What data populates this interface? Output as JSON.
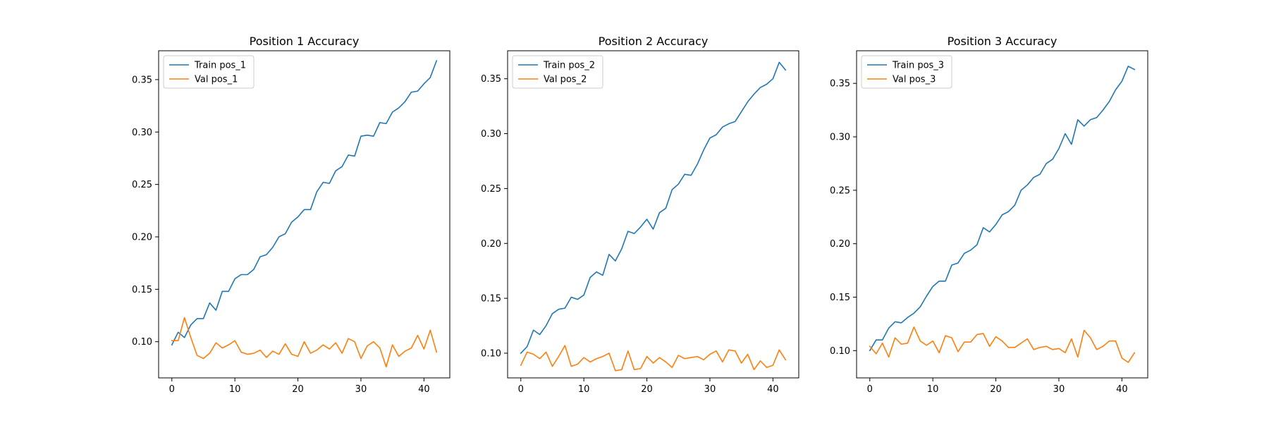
{
  "chart_data": [
    {
      "type": "line",
      "title": "Position 1 Accuracy",
      "xlabel": "",
      "ylabel": "",
      "xlim": [
        -2.1,
        44.1
      ],
      "ylim": [
        0.0655,
        0.3775
      ],
      "xticks": [
        0,
        10,
        20,
        30,
        40
      ],
      "yticks": [
        0.1,
        0.15,
        0.2,
        0.25,
        0.3,
        0.35
      ],
      "grid": false,
      "legend_position": "upper-left",
      "series": [
        {
          "name": "Train pos_1",
          "color": "#1f77b4",
          "x": [
            0,
            1,
            2,
            3,
            4,
            5,
            6,
            7,
            8,
            9,
            10,
            11,
            12,
            13,
            14,
            15,
            16,
            17,
            18,
            19,
            20,
            21,
            22,
            23,
            24,
            25,
            26,
            27,
            28,
            29,
            30,
            31,
            32,
            33,
            34,
            35,
            36,
            37,
            38,
            39,
            40,
            41,
            42
          ],
          "y": [
            0.097,
            0.109,
            0.104,
            0.116,
            0.122,
            0.122,
            0.137,
            0.13,
            0.148,
            0.148,
            0.16,
            0.164,
            0.164,
            0.169,
            0.181,
            0.183,
            0.19,
            0.2,
            0.203,
            0.214,
            0.219,
            0.226,
            0.226,
            0.243,
            0.252,
            0.251,
            0.263,
            0.267,
            0.278,
            0.277,
            0.296,
            0.297,
            0.296,
            0.309,
            0.308,
            0.319,
            0.323,
            0.329,
            0.338,
            0.339,
            0.346,
            0.352,
            0.368
          ]
        },
        {
          "name": "Val pos_1",
          "color": "#ff7f0e",
          "x": [
            0,
            1,
            2,
            3,
            4,
            5,
            6,
            7,
            8,
            9,
            10,
            11,
            12,
            13,
            14,
            15,
            16,
            17,
            18,
            19,
            20,
            21,
            22,
            23,
            24,
            25,
            26,
            27,
            28,
            29,
            30,
            31,
            32,
            33,
            34,
            35,
            36,
            37,
            38,
            39,
            40,
            41,
            42
          ],
          "y": [
            0.101,
            0.101,
            0.123,
            0.104,
            0.087,
            0.084,
            0.089,
            0.099,
            0.094,
            0.097,
            0.101,
            0.09,
            0.088,
            0.089,
            0.092,
            0.085,
            0.091,
            0.088,
            0.098,
            0.088,
            0.086,
            0.1,
            0.089,
            0.092,
            0.097,
            0.093,
            0.099,
            0.089,
            0.103,
            0.1,
            0.084,
            0.096,
            0.1,
            0.094,
            0.076,
            0.097,
            0.086,
            0.091,
            0.094,
            0.106,
            0.093,
            0.111,
            0.09
          ]
        }
      ]
    },
    {
      "type": "line",
      "title": "Position 2 Accuracy",
      "xlabel": "",
      "ylabel": "",
      "xlim": [
        -2.1,
        44.1
      ],
      "ylim": [
        0.0775,
        0.3755
      ],
      "xticks": [
        0,
        10,
        20,
        30,
        40
      ],
      "yticks": [
        0.1,
        0.15,
        0.2,
        0.25,
        0.3,
        0.35
      ],
      "grid": false,
      "legend_position": "upper-left",
      "series": [
        {
          "name": "Train pos_2",
          "color": "#1f77b4",
          "x": [
            0,
            1,
            2,
            3,
            4,
            5,
            6,
            7,
            8,
            9,
            10,
            11,
            12,
            13,
            14,
            15,
            16,
            17,
            18,
            19,
            20,
            21,
            22,
            23,
            24,
            25,
            26,
            27,
            28,
            29,
            30,
            31,
            32,
            33,
            34,
            35,
            36,
            37,
            38,
            39,
            40,
            41,
            42
          ],
          "y": [
            0.1,
            0.106,
            0.121,
            0.117,
            0.125,
            0.136,
            0.14,
            0.141,
            0.151,
            0.149,
            0.153,
            0.169,
            0.174,
            0.171,
            0.19,
            0.184,
            0.195,
            0.211,
            0.209,
            0.215,
            0.222,
            0.213,
            0.228,
            0.232,
            0.249,
            0.254,
            0.263,
            0.262,
            0.272,
            0.285,
            0.296,
            0.299,
            0.306,
            0.309,
            0.311,
            0.32,
            0.329,
            0.336,
            0.342,
            0.345,
            0.35,
            0.365,
            0.358
          ]
        },
        {
          "name": "Val pos_2",
          "color": "#ff7f0e",
          "x": [
            0,
            1,
            2,
            3,
            4,
            5,
            6,
            7,
            8,
            9,
            10,
            11,
            12,
            13,
            14,
            15,
            16,
            17,
            18,
            19,
            20,
            21,
            22,
            23,
            24,
            25,
            26,
            27,
            28,
            29,
            30,
            31,
            32,
            33,
            34,
            35,
            36,
            37,
            38,
            39,
            40,
            41,
            42
          ],
          "y": [
            0.089,
            0.101,
            0.099,
            0.095,
            0.101,
            0.088,
            0.097,
            0.107,
            0.088,
            0.09,
            0.096,
            0.092,
            0.095,
            0.097,
            0.1,
            0.084,
            0.085,
            0.102,
            0.085,
            0.086,
            0.097,
            0.091,
            0.096,
            0.092,
            0.087,
            0.098,
            0.095,
            0.096,
            0.097,
            0.094,
            0.099,
            0.102,
            0.092,
            0.103,
            0.102,
            0.091,
            0.099,
            0.085,
            0.093,
            0.087,
            0.089,
            0.103,
            0.094
          ]
        }
      ]
    },
    {
      "type": "line",
      "title": "Position 3 Accuracy",
      "xlabel": "",
      "ylabel": "",
      "xlim": [
        -2.1,
        44.1
      ],
      "ylim": [
        0.0745,
        0.3805
      ],
      "xticks": [
        0,
        10,
        20,
        30,
        40
      ],
      "yticks": [
        0.1,
        0.15,
        0.2,
        0.25,
        0.3,
        0.35
      ],
      "grid": false,
      "legend_position": "upper-left",
      "series": [
        {
          "name": "Train pos_3",
          "color": "#1f77b4",
          "x": [
            0,
            1,
            2,
            3,
            4,
            5,
            6,
            7,
            8,
            9,
            10,
            11,
            12,
            13,
            14,
            15,
            16,
            17,
            18,
            19,
            20,
            21,
            22,
            23,
            24,
            25,
            26,
            27,
            28,
            29,
            30,
            31,
            32,
            33,
            34,
            35,
            36,
            37,
            38,
            39,
            40,
            41,
            42
          ],
          "y": [
            0.1,
            0.11,
            0.11,
            0.121,
            0.127,
            0.126,
            0.131,
            0.135,
            0.141,
            0.151,
            0.16,
            0.165,
            0.165,
            0.18,
            0.182,
            0.191,
            0.194,
            0.199,
            0.215,
            0.211,
            0.218,
            0.227,
            0.23,
            0.236,
            0.25,
            0.255,
            0.262,
            0.265,
            0.275,
            0.279,
            0.289,
            0.303,
            0.293,
            0.316,
            0.31,
            0.316,
            0.318,
            0.325,
            0.333,
            0.344,
            0.352,
            0.366,
            0.363
          ]
        },
        {
          "name": "Val pos_3",
          "color": "#ff7f0e",
          "x": [
            0,
            1,
            2,
            3,
            4,
            5,
            6,
            7,
            8,
            9,
            10,
            11,
            12,
            13,
            14,
            15,
            16,
            17,
            18,
            19,
            20,
            21,
            22,
            23,
            24,
            25,
            26,
            27,
            28,
            29,
            30,
            31,
            32,
            33,
            34,
            35,
            36,
            37,
            38,
            39,
            40,
            41,
            42
          ],
          "y": [
            0.104,
            0.097,
            0.107,
            0.094,
            0.112,
            0.106,
            0.107,
            0.122,
            0.109,
            0.105,
            0.109,
            0.098,
            0.114,
            0.112,
            0.099,
            0.108,
            0.108,
            0.115,
            0.116,
            0.104,
            0.113,
            0.109,
            0.103,
            0.103,
            0.107,
            0.111,
            0.101,
            0.103,
            0.104,
            0.101,
            0.102,
            0.098,
            0.111,
            0.094,
            0.119,
            0.112,
            0.101,
            0.104,
            0.109,
            0.109,
            0.093,
            0.089,
            0.098
          ]
        }
      ]
    }
  ]
}
